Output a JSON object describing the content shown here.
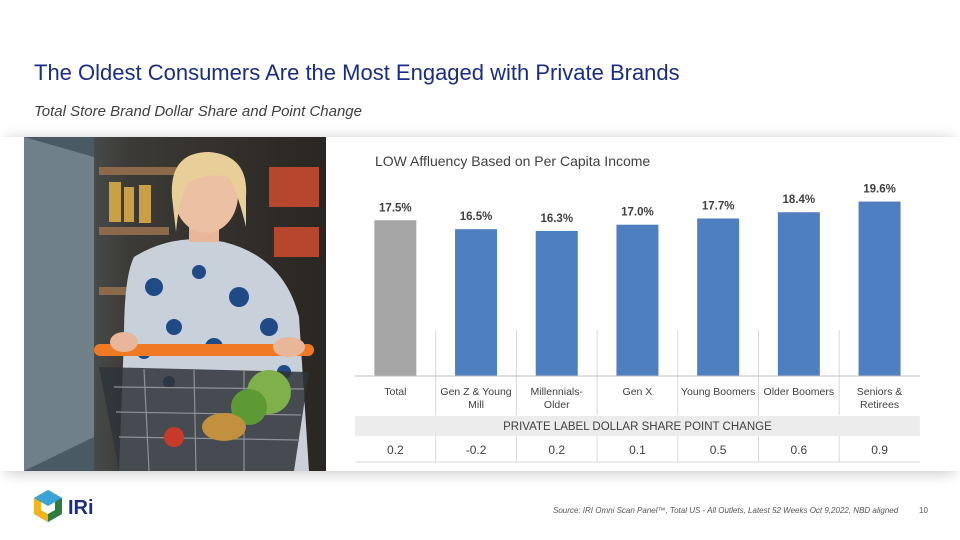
{
  "slide": {
    "title": "The Oldest Consumers Are the Most Engaged with Private Brands",
    "subtitle": "Total Store Brand Dollar Share and Point Change",
    "source": "Source: IRI Omni Scan Panel™, Total US - All Outlets, Latest 52 Weeks Oct 9,2022, NBD aligned",
    "page_number": "10",
    "logo_text": "IRi"
  },
  "chart_data": {
    "type": "bar",
    "title": "LOW Affluency Based on Per Capita Income",
    "categories": [
      [
        "Total"
      ],
      [
        "Gen Z & Young",
        "Mill"
      ],
      [
        "Millennials-",
        "Older"
      ],
      [
        "Gen X"
      ],
      [
        "Young Boomers"
      ],
      [
        "Older Boomers"
      ],
      [
        "Seniors &",
        "Retirees"
      ]
    ],
    "values": [
      17.5,
      16.5,
      16.3,
      17.0,
      17.7,
      18.4,
      19.6
    ],
    "value_labels": [
      "17.5%",
      "16.5%",
      "16.3%",
      "17.0%",
      "17.7%",
      "18.4%",
      "19.6%"
    ],
    "ylim": [
      0,
      20
    ],
    "bar_colors": [
      "#a6a6a6",
      "#4e7fc0",
      "#4e7fc0",
      "#4e7fc0",
      "#4e7fc0",
      "#4e7fc0",
      "#4e7fc0"
    ],
    "table_header": "PRIVATE LABEL DOLLAR SHARE POINT CHANGE",
    "point_change": [
      "0.2",
      "-0.2",
      "0.2",
      "0.1",
      "0.5",
      "0.6",
      "0.9"
    ],
    "colors": {
      "header_bg": "#ececec",
      "grid": "#d9d9d9",
      "text": "#404040"
    }
  },
  "icons": {
    "photo": "shopper-photo",
    "logo": "iri-logo-icon"
  }
}
